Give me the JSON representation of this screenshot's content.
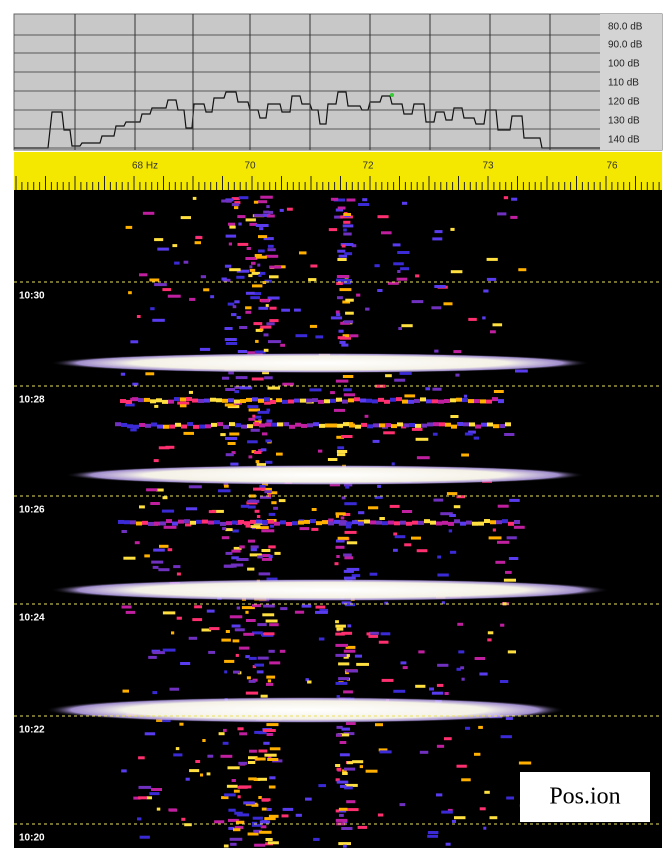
{
  "spectrum": {
    "db_labels": [
      "80.0 dB",
      "90.0 dB",
      "100 dB",
      "110 dB",
      "120 dB",
      "130 dB",
      "140 dB"
    ]
  },
  "ruler": {
    "labels": [
      "68 Hz",
      "70",
      "72",
      "73",
      "76"
    ]
  },
  "waterfall": {
    "time_labels": [
      "10:30",
      "10:28",
      "10:26",
      "10:24",
      "10:22",
      "10:20"
    ]
  },
  "caption": "Pos.ion"
}
